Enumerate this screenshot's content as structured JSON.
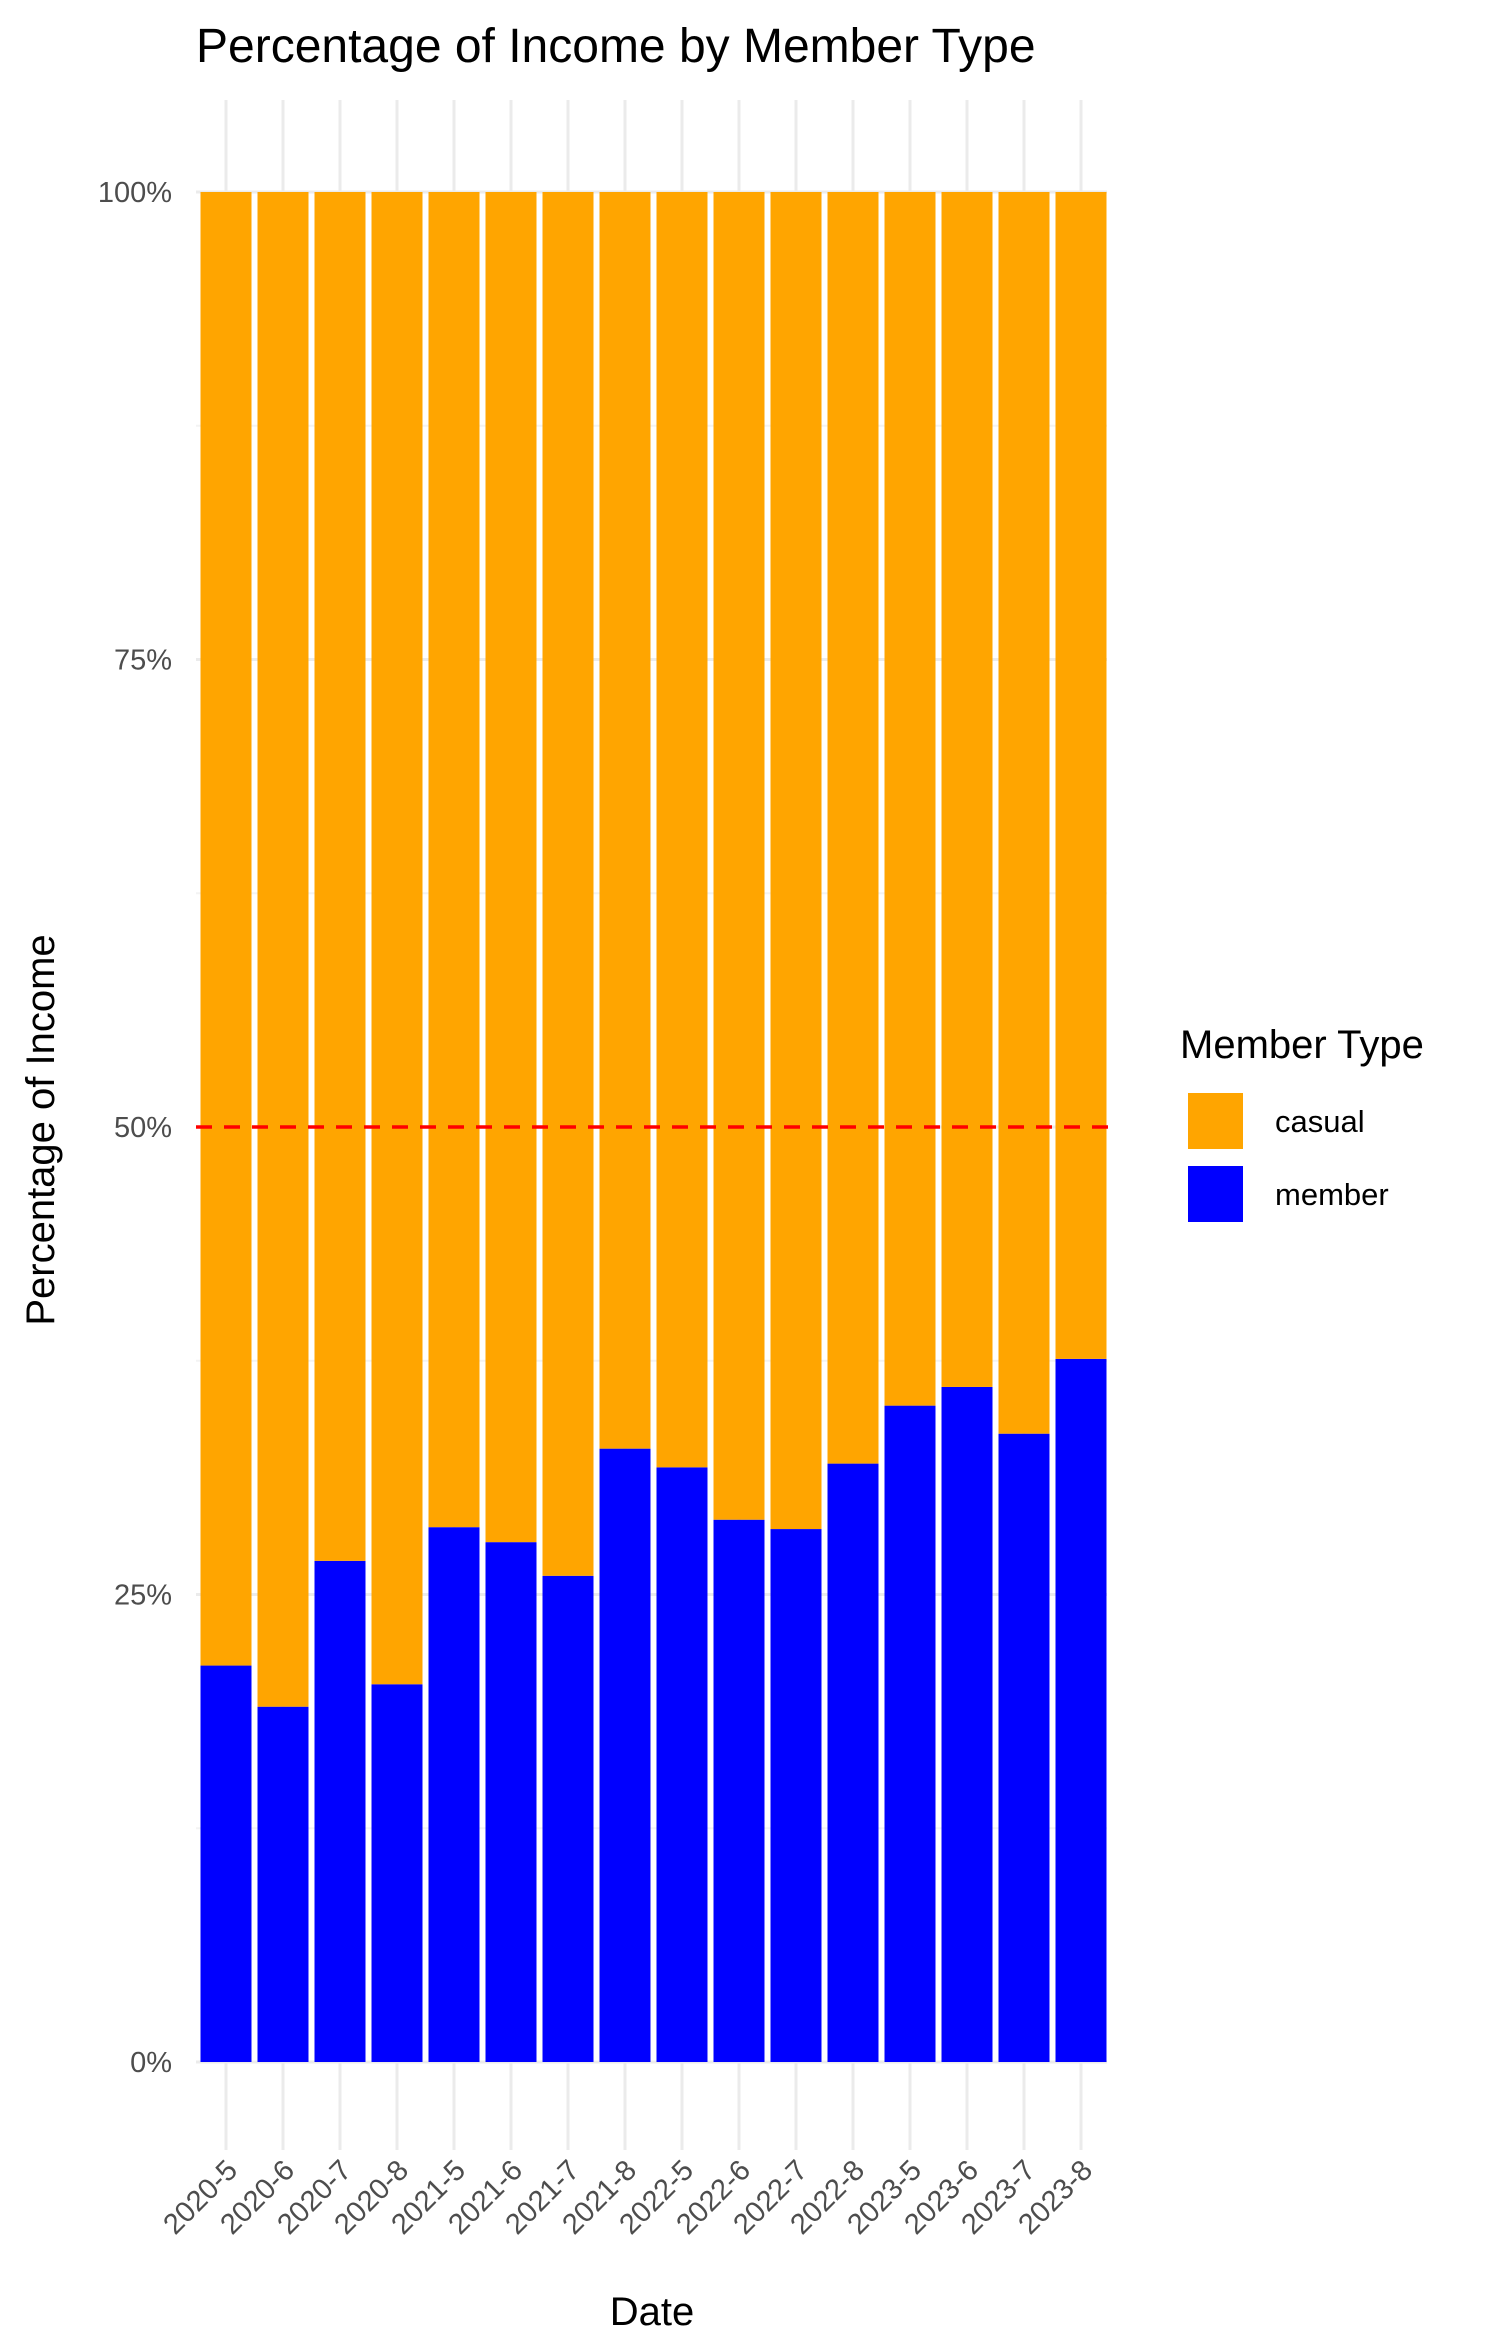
{
  "chart_data": {
    "type": "bar",
    "stacked": true,
    "percent_stacked": true,
    "title": "Percentage of Income by Member Type",
    "xlabel": "Date",
    "ylabel": "Percentage of Income",
    "categories": [
      "2020-5",
      "2020-6",
      "2020-7",
      "2020-8",
      "2021-5",
      "2021-6",
      "2021-7",
      "2021-8",
      "2022-5",
      "2022-6",
      "2022-7",
      "2022-8",
      "2023-5",
      "2023-6",
      "2023-7",
      "2023-8"
    ],
    "series": [
      {
        "name": "member",
        "color": "#0000ff",
        "values": [
          21.2,
          19.0,
          26.8,
          20.2,
          28.6,
          27.8,
          26.0,
          32.8,
          31.8,
          29.0,
          28.5,
          32.0,
          35.1,
          36.1,
          33.6,
          37.6
        ]
      },
      {
        "name": "casual",
        "color": "#ffa500",
        "values": [
          78.8,
          81.0,
          73.2,
          79.8,
          71.4,
          72.2,
          74.0,
          67.2,
          68.2,
          71.0,
          71.5,
          68.0,
          64.9,
          63.9,
          66.4,
          62.4
        ]
      }
    ],
    "ylim": [
      0,
      100
    ],
    "yticks": [
      0,
      25,
      50,
      75,
      100
    ],
    "ytick_labels": [
      "0%",
      "25%",
      "50%",
      "75%",
      "100%"
    ],
    "reference_line": {
      "y": 50,
      "color": "#ff0000",
      "style": "dashed"
    },
    "legend": {
      "title": "Member Type",
      "position": "right",
      "items": [
        {
          "label": "casual",
          "color": "#ffa500"
        },
        {
          "label": "member",
          "color": "#0000ff"
        }
      ]
    },
    "grid": true
  }
}
